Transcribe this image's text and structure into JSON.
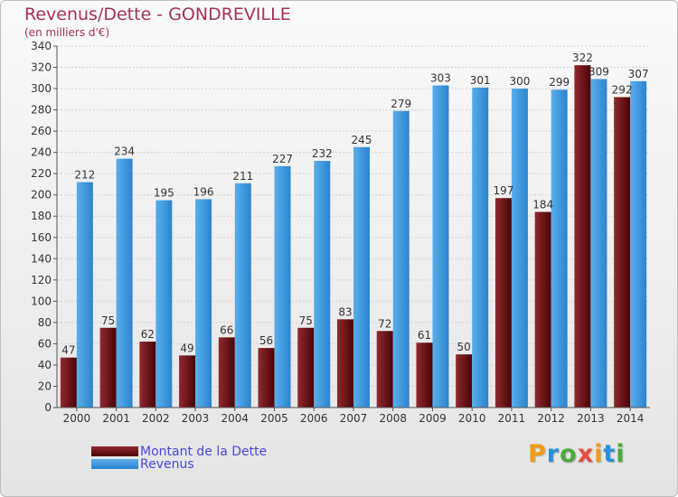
{
  "chart_data": {
    "type": "bar",
    "title": "Revenus/Dette - GONDREVILLE",
    "subtitle": "(en milliers d'€)",
    "categories": [
      "2000",
      "2001",
      "2002",
      "2003",
      "2004",
      "2005",
      "2006",
      "2007",
      "2008",
      "2009",
      "2010",
      "2011",
      "2012",
      "2013",
      "2014"
    ],
    "series": [
      {
        "name": "Montant de la Dette",
        "color": "#6b0f14",
        "values": [
          47,
          75,
          62,
          49,
          66,
          56,
          75,
          83,
          72,
          61,
          50,
          197,
          184,
          322,
          292
        ]
      },
      {
        "name": "Revenus",
        "color": "#3d97de",
        "values": [
          212,
          234,
          195,
          196,
          211,
          227,
          232,
          245,
          279,
          303,
          301,
          300,
          299,
          309,
          307
        ]
      }
    ],
    "ylim": [
      0,
      340
    ],
    "yticks": [
      0,
      20,
      40,
      60,
      80,
      100,
      120,
      140,
      160,
      180,
      200,
      220,
      240,
      260,
      280,
      300,
      320,
      340
    ],
    "grid": true,
    "legend_position": "bottom-left",
    "xlabel": "",
    "ylabel": ""
  },
  "branding": {
    "logo_text": "Proxiti"
  }
}
